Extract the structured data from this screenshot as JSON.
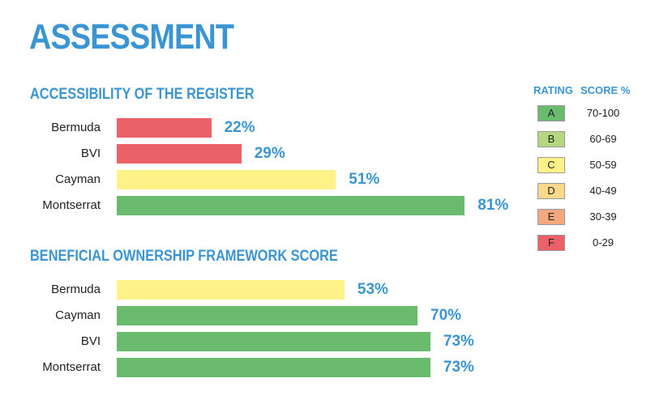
{
  "title": "ASSESSMENT",
  "colors": {
    "title": "#3b95d2",
    "A": "#6abb6e",
    "B": "#b6d680",
    "C": "#fdf188",
    "D": "#fcd88a",
    "E": "#f5a77d",
    "F": "#ec6168"
  },
  "legend": {
    "rating_header": "RATING",
    "score_header": "SCORE %",
    "items": [
      {
        "grade": "A",
        "range": "70-100",
        "min": 70,
        "max": 100
      },
      {
        "grade": "B",
        "range": "60-69",
        "min": 60,
        "max": 69
      },
      {
        "grade": "C",
        "range": "50-59",
        "min": 50,
        "max": 59
      },
      {
        "grade": "D",
        "range": "40-49",
        "min": 40,
        "max": 49
      },
      {
        "grade": "E",
        "range": "30-39",
        "min": 30,
        "max": 39
      },
      {
        "grade": "F",
        "range": "0-29",
        "min": 0,
        "max": 29
      }
    ]
  },
  "chart_data": [
    {
      "type": "bar",
      "orientation": "horizontal",
      "title": "ACCESSIBILITY OF THE REGISTER",
      "categories": [
        "Bermuda",
        "BVI",
        "Cayman",
        "Montserrat"
      ],
      "values": [
        22,
        29,
        51,
        81
      ],
      "value_labels": [
        "22%",
        "29%",
        "51%",
        "81%"
      ],
      "xlim": [
        0,
        100
      ],
      "grid": false
    },
    {
      "type": "bar",
      "orientation": "horizontal",
      "title": "BENEFICIAL OWNERSHIP FRAMEWORK SCORE",
      "categories": [
        "Bermuda",
        "Cayman",
        "BVI",
        "Montserrat"
      ],
      "values": [
        53,
        70,
        73,
        73
      ],
      "value_labels": [
        "53%",
        "70%",
        "73%",
        "73%"
      ],
      "xlim": [
        0,
        100
      ],
      "grid": false
    }
  ]
}
